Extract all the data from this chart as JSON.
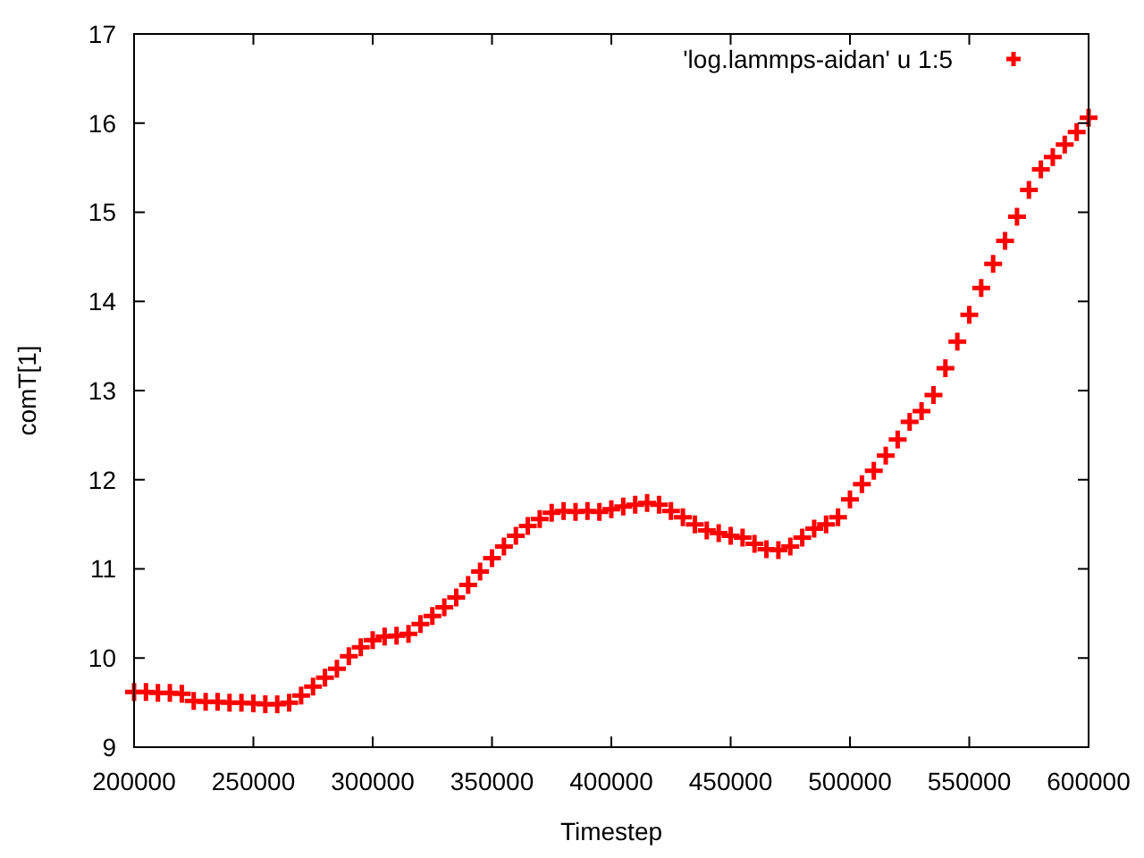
{
  "chart_data": {
    "type": "scatter",
    "xlabel": "Timestep",
    "ylabel": "comT[1]",
    "xlim": [
      200000,
      600000
    ],
    "ylim": [
      9,
      17
    ],
    "xticks": [
      200000,
      250000,
      300000,
      350000,
      400000,
      450000,
      500000,
      550000,
      600000
    ],
    "yticks": [
      9,
      10,
      11,
      12,
      13,
      14,
      15,
      16,
      17
    ],
    "grid": false,
    "legend": "top right",
    "marker": "cross",
    "series": [
      {
        "name": "'log.lammps-aidan' u 1:5",
        "color": "#ff0000",
        "x": [
          200000,
          205000,
          210000,
          215000,
          220000,
          225000,
          230000,
          235000,
          240000,
          245000,
          250000,
          255000,
          260000,
          265000,
          270000,
          275000,
          280000,
          285000,
          290000,
          295000,
          300000,
          305000,
          310000,
          315000,
          320000,
          325000,
          330000,
          335000,
          340000,
          345000,
          350000,
          355000,
          360000,
          365000,
          370000,
          375000,
          380000,
          385000,
          390000,
          395000,
          400000,
          405000,
          410000,
          415000,
          420000,
          425000,
          430000,
          435000,
          440000,
          445000,
          450000,
          455000,
          460000,
          465000,
          470000,
          475000,
          480000,
          485000,
          490000,
          495000,
          500000,
          505000,
          510000,
          515000,
          520000,
          525000,
          530000,
          535000,
          540000,
          545000,
          550000,
          555000,
          560000,
          565000,
          570000,
          575000,
          580000,
          585000,
          590000,
          595000,
          600000
        ],
        "values": [
          9.62,
          9.62,
          9.61,
          9.61,
          9.6,
          9.52,
          9.51,
          9.51,
          9.5,
          9.5,
          9.49,
          9.48,
          9.48,
          9.5,
          9.58,
          9.68,
          9.78,
          9.88,
          10.02,
          10.12,
          10.2,
          10.24,
          10.25,
          10.27,
          10.38,
          10.47,
          10.57,
          10.68,
          10.82,
          10.97,
          11.12,
          11.25,
          11.37,
          11.48,
          11.56,
          11.63,
          11.65,
          11.64,
          11.65,
          11.64,
          11.67,
          11.7,
          11.72,
          11.74,
          11.72,
          11.65,
          11.58,
          11.5,
          11.43,
          11.4,
          11.37,
          11.35,
          11.28,
          11.22,
          11.21,
          11.25,
          11.35,
          11.45,
          11.5,
          11.58,
          11.78,
          11.95,
          12.1,
          12.27,
          12.45,
          12.65,
          12.77,
          12.95,
          13.25,
          13.55,
          13.85,
          14.15,
          14.42,
          14.68,
          14.95,
          15.25,
          15.48,
          15.62,
          15.76,
          15.9,
          16.06
        ]
      }
    ]
  }
}
